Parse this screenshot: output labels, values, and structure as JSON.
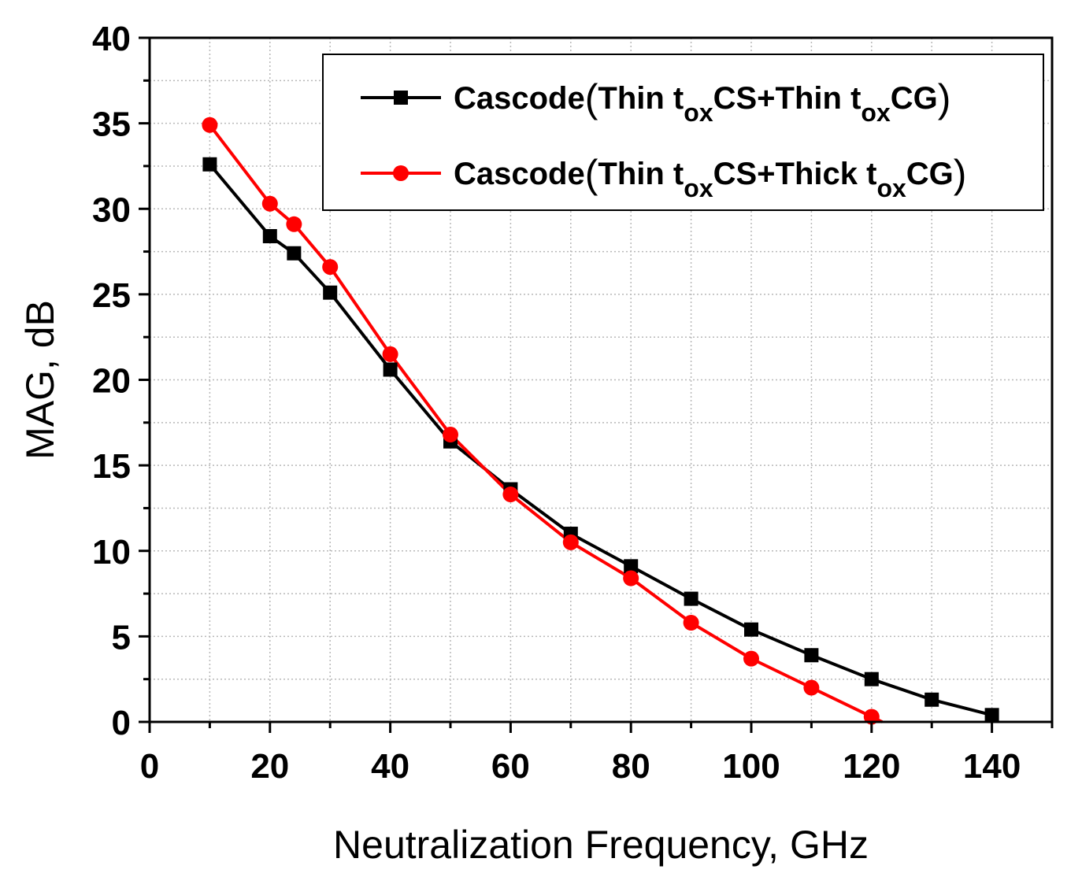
{
  "chart_data": {
    "type": "line",
    "xlabel": "Neutralization Frequency, GHz",
    "ylabel": "MAG, dB",
    "xlim": [
      0,
      150
    ],
    "ylim": [
      0,
      40
    ],
    "xticks": [
      0,
      20,
      40,
      60,
      80,
      100,
      120,
      140
    ],
    "yticks": [
      0,
      5,
      10,
      15,
      20,
      25,
      30,
      35,
      40
    ],
    "grid": true,
    "legend_position": "top-right",
    "series": [
      {
        "name": "Cascode(Thin toxCS+Thin toxCG)",
        "legend_parts": {
          "prefix": "Cascode",
          "p1": "Thin t",
          "s1": "ox",
          "m1": "CS+Thin t",
          "s2": "ox",
          "end": "CG"
        },
        "color": "#000000",
        "marker": "square",
        "x": [
          10,
          20,
          24,
          30,
          40,
          50,
          60,
          70,
          80,
          90,
          100,
          110,
          120,
          130,
          140
        ],
        "y": [
          32.6,
          28.4,
          27.4,
          25.1,
          20.6,
          16.4,
          13.6,
          11.0,
          9.1,
          7.2,
          5.4,
          3.9,
          2.5,
          1.3,
          0.4
        ]
      },
      {
        "name": "Cascode(Thin toxCS+Thick toxCG)",
        "legend_parts": {
          "prefix": "Cascode",
          "p1": "Thin t",
          "s1": "ox",
          "m1": "CS+Thick t",
          "s2": "ox",
          "end": "CG"
        },
        "color": "#ff0000",
        "marker": "circle",
        "x": [
          10,
          20,
          24,
          30,
          40,
          50,
          60,
          70,
          80,
          90,
          100,
          110,
          120
        ],
        "y": [
          34.9,
          30.3,
          29.1,
          26.6,
          21.5,
          16.8,
          13.3,
          10.5,
          8.4,
          5.8,
          3.7,
          2.0,
          0.3
        ],
        "extend_to_x": 122
      }
    ]
  }
}
